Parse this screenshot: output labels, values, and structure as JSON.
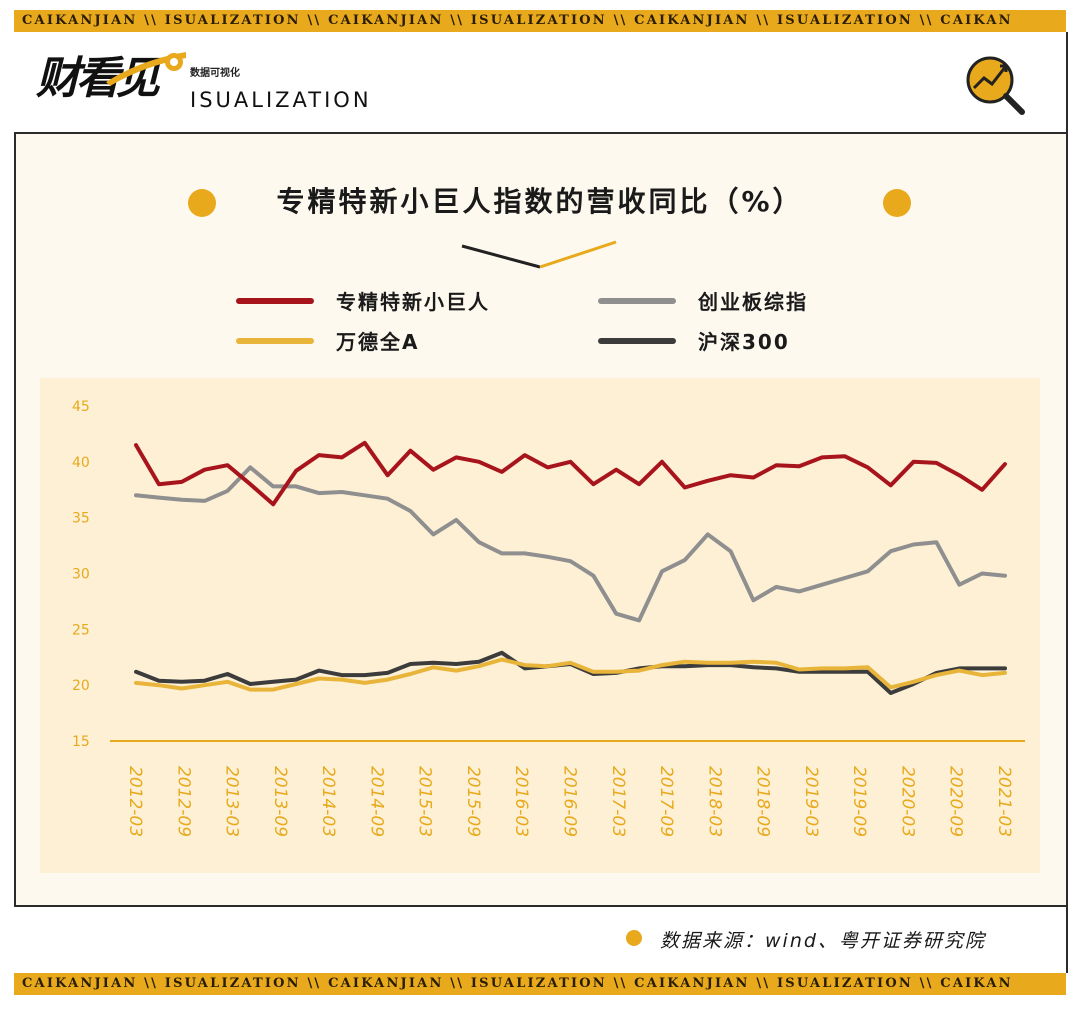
{
  "band_text": "CAIKANJIAN \\\\ ISUALIZATION \\\\ CAIKANJIAN \\\\ ISUALIZATION \\\\ CAIKANJIAN \\\\ ISUALIZATION \\\\ CAIKAN",
  "brand": {
    "logo_cn": "财看见",
    "logo_swoosh_text": "ISUALIZATION",
    "sub": "数据可视化",
    "en": "ISUALIZATION"
  },
  "colors": {
    "accent": "#e8a91c",
    "red": "#a8141c",
    "gray": "#8f8f8f",
    "yellow": "#e8b53a",
    "dark": "#3c3c3c",
    "axis_text": "#e8a91c"
  },
  "icon": "chart-magnifier-icon",
  "source": "数据来源：wind、粤开证券研究院",
  "chart_data": {
    "type": "line",
    "title": "专精特新小巨人指数的营收同比（%）",
    "ylim": [
      15,
      45
    ],
    "yticks": [
      15,
      20,
      25,
      30,
      35,
      40,
      45
    ],
    "x_tick_labels": [
      "2012-03",
      "2012-09",
      "2013-03",
      "2013-09",
      "2014-03",
      "2014-09",
      "2015-03",
      "2015-09",
      "2016-03",
      "2016-09",
      "2017-03",
      "2017-09",
      "2018-03",
      "2018-09",
      "2019-03",
      "2019-09",
      "2020-03",
      "2020-09",
      "2021-03"
    ],
    "grid": false,
    "legend": "top",
    "series": [
      {
        "name": "专精特新小巨人",
        "color": "#a8141c",
        "values": [
          41.5,
          38,
          38.2,
          39.3,
          39.7,
          38,
          36.2,
          39.2,
          40.6,
          40.4,
          41.7,
          38.8,
          41,
          39.3,
          40.4,
          40,
          39.1,
          40.6,
          39.5,
          40,
          38,
          39.3,
          38,
          40,
          37.7,
          38.3,
          38.8,
          38.6,
          39.7,
          39.6,
          40.4,
          40.5,
          39.5,
          37.9,
          40,
          39.9,
          38.8,
          37.5,
          39.8
        ]
      },
      {
        "name": "创业板综指",
        "color": "#8f8f8f",
        "values": [
          37,
          36.8,
          36.6,
          36.5,
          37.4,
          39.5,
          37.8,
          37.8,
          37.2,
          37.3,
          37,
          36.7,
          35.6,
          33.5,
          34.8,
          32.8,
          31.8,
          31.8,
          31.5,
          31.1,
          29.8,
          26.4,
          25.8,
          30.2,
          31.2,
          33.5,
          32,
          27.6,
          28.8,
          28.4,
          29,
          29.6,
          30.2,
          32,
          32.6,
          32.8,
          29,
          30,
          29.8
        ]
      },
      {
        "name": "万德全A",
        "color": "#e8b53a",
        "values": [
          20.2,
          20,
          19.7,
          20,
          20.3,
          19.6,
          19.6,
          20.1,
          20.6,
          20.5,
          20.2,
          20.5,
          21,
          21.6,
          21.3,
          21.7,
          22.3,
          21.8,
          21.7,
          22,
          21.2,
          21.2,
          21.3,
          21.8,
          22.1,
          22,
          22,
          22.1,
          22,
          21.4,
          21.5,
          21.5,
          21.6,
          19.8,
          20.3,
          20.9,
          21.3,
          20.9,
          21.1
        ]
      },
      {
        "name": "沪深300",
        "color": "#3c3c3c",
        "values": [
          21.2,
          20.4,
          20.3,
          20.4,
          21,
          20.1,
          20.3,
          20.5,
          21.3,
          20.9,
          20.9,
          21.1,
          21.9,
          22,
          21.9,
          22.1,
          22.9,
          21.5,
          21.7,
          21.9,
          21,
          21.1,
          21.5,
          21.7,
          21.7,
          21.8,
          21.8,
          21.6,
          21.5,
          21.2,
          21.2,
          21.2,
          21.2,
          19.3,
          20.1,
          21.1,
          21.5,
          21.5,
          21.5
        ]
      }
    ]
  }
}
